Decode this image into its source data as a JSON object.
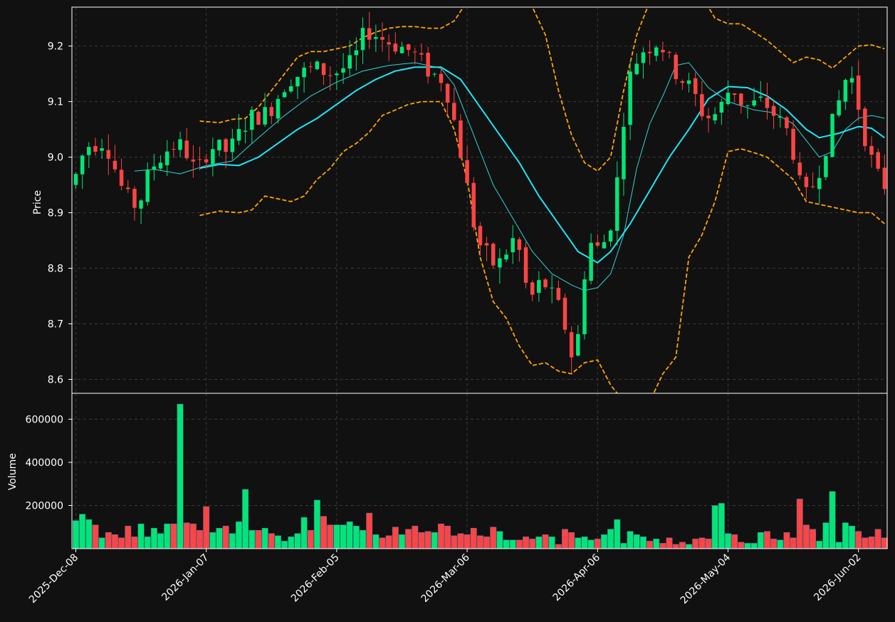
{
  "colors": {
    "background": "#111111",
    "up": "#00e676",
    "down": "#ff4444",
    "ma_fast": "#31d4d4",
    "ma_slow": "#1ee6f5",
    "bollinger": "#ffa500",
    "frame": "#ffffff",
    "grid": "#3a3a3a"
  },
  "chart_data": {
    "type": "candlestick",
    "panels": {
      "price": {
        "ylabel": "Price",
        "ylim": [
          8.575,
          9.27
        ],
        "yticks": [
          8.6,
          8.7,
          8.8,
          8.9,
          9.0,
          9.1,
          9.2
        ],
        "ytick_labels": [
          "8.6",
          "8.7",
          "8.8",
          "8.9",
          "9.0",
          "9.1",
          "9.2"
        ]
      },
      "volume": {
        "ylabel": "Volume",
        "ylim": [
          0,
          720000
        ],
        "yticks": [
          200000,
          400000,
          600000
        ],
        "ytick_labels": [
          "200000",
          "400000",
          "600000"
        ]
      }
    },
    "xlim": [
      -0.6,
      124.4
    ],
    "xticks": [
      0,
      20,
      40,
      60,
      80,
      100,
      120
    ],
    "xtick_labels": [
      "2025-Dec-08",
      "2026-Jan-07",
      "2026-Feb-05",
      "2026-Mar-06",
      "2026-Apr-06",
      "2026-May-04",
      "2026-Jun-02"
    ],
    "grid": true,
    "legend": "none",
    "ohlc_path": [
      [
        0,
        8.95
      ],
      [
        2,
        9.02
      ],
      [
        5,
        9.03
      ],
      [
        8,
        8.93
      ],
      [
        10,
        8.91
      ],
      [
        12,
        8.98
      ],
      [
        15,
        9.02
      ],
      [
        17,
        9.02
      ],
      [
        19,
        8.97
      ],
      [
        21,
        9.02
      ],
      [
        24,
        9.01
      ],
      [
        27,
        9.07
      ],
      [
        30,
        9.08
      ],
      [
        33,
        9.14
      ],
      [
        37,
        9.16
      ],
      [
        40,
        9.15
      ],
      [
        43,
        9.17
      ],
      [
        45,
        9.23
      ],
      [
        48,
        9.21
      ],
      [
        52,
        9.19
      ],
      [
        55,
        9.15
      ],
      [
        57,
        9.14
      ],
      [
        59,
        9.04
      ],
      [
        62,
        8.85
      ],
      [
        65,
        8.8
      ],
      [
        68,
        8.86
      ],
      [
        70,
        8.74
      ],
      [
        72,
        8.78
      ],
      [
        75,
        8.72
      ],
      [
        77,
        8.62
      ],
      [
        79,
        8.85
      ],
      [
        81,
        8.83
      ],
      [
        83,
        8.9
      ],
      [
        85,
        9.13
      ],
      [
        87,
        9.19
      ],
      [
        90,
        9.21
      ],
      [
        92,
        9.16
      ],
      [
        95,
        9.12
      ],
      [
        97,
        9.07
      ],
      [
        99,
        9.08
      ],
      [
        101,
        9.13
      ],
      [
        103,
        9.09
      ],
      [
        106,
        9.1
      ],
      [
        108,
        9.07
      ],
      [
        110,
        9.04
      ],
      [
        112,
        8.92
      ],
      [
        114,
        8.96
      ],
      [
        116,
        9.04
      ],
      [
        118,
        9.12
      ],
      [
        119,
        9.16
      ],
      [
        120,
        9.12
      ],
      [
        122,
        9.01
      ],
      [
        124,
        8.95
      ]
    ],
    "candle_noise": 0.018,
    "series": [
      {
        "name": "",
        "type": "line",
        "style": "thin",
        "color_key": "ma_fast",
        "start": 9,
        "points": [
          [
            9,
            8.975
          ],
          [
            12,
            8.978
          ],
          [
            16,
            8.97
          ],
          [
            20,
            8.985
          ],
          [
            24,
            8.993
          ],
          [
            28,
            9.035
          ],
          [
            32,
            9.075
          ],
          [
            36,
            9.11
          ],
          [
            40,
            9.135
          ],
          [
            44,
            9.155
          ],
          [
            48,
            9.165
          ],
          [
            52,
            9.17
          ],
          [
            56,
            9.16
          ],
          [
            58,
            9.13
          ],
          [
            61,
            9.04
          ],
          [
            64,
            8.95
          ],
          [
            67,
            8.89
          ],
          [
            70,
            8.83
          ],
          [
            73,
            8.79
          ],
          [
            76,
            8.77
          ],
          [
            78,
            8.76
          ],
          [
            80,
            8.765
          ],
          [
            82,
            8.79
          ],
          [
            84,
            8.86
          ],
          [
            86,
            8.98
          ],
          [
            88,
            9.06
          ],
          [
            90,
            9.11
          ],
          [
            92,
            9.165
          ],
          [
            94,
            9.17
          ],
          [
            97,
            9.125
          ],
          [
            100,
            9.1
          ],
          [
            104,
            9.085
          ],
          [
            107,
            9.08
          ],
          [
            110,
            9.06
          ],
          [
            112,
            9.03
          ],
          [
            114,
            9.0
          ],
          [
            116,
            9.01
          ],
          [
            118,
            9.05
          ],
          [
            120,
            9.07
          ],
          [
            122,
            9.075
          ],
          [
            124,
            9.07
          ]
        ]
      },
      {
        "name": "",
        "type": "line",
        "style": "thick",
        "color_key": "ma_slow",
        "start": 19,
        "points": [
          [
            19,
            8.98
          ],
          [
            22,
            8.987
          ],
          [
            25,
            8.985
          ],
          [
            28,
            9.0
          ],
          [
            31,
            9.025
          ],
          [
            34,
            9.05
          ],
          [
            37,
            9.07
          ],
          [
            40,
            9.095
          ],
          [
            43,
            9.12
          ],
          [
            46,
            9.14
          ],
          [
            49,
            9.155
          ],
          [
            52,
            9.162
          ],
          [
            56,
            9.162
          ],
          [
            59,
            9.14
          ],
          [
            62,
            9.09
          ],
          [
            65,
            9.04
          ],
          [
            68,
            8.99
          ],
          [
            71,
            8.93
          ],
          [
            74,
            8.88
          ],
          [
            77,
            8.83
          ],
          [
            80,
            8.81
          ],
          [
            82,
            8.83
          ],
          [
            85,
            8.88
          ],
          [
            88,
            8.94
          ],
          [
            91,
            9.0
          ],
          [
            94,
            9.05
          ],
          [
            97,
            9.105
          ],
          [
            100,
            9.127
          ],
          [
            103,
            9.125
          ],
          [
            106,
            9.11
          ],
          [
            109,
            9.085
          ],
          [
            112,
            9.05
          ],
          [
            114,
            9.035
          ],
          [
            117,
            9.043
          ],
          [
            120,
            9.055
          ],
          [
            122,
            9.052
          ],
          [
            124,
            9.035
          ]
        ]
      },
      {
        "name": "",
        "type": "line",
        "style": "dashed",
        "color_key": "bollinger",
        "start": 19,
        "points": [
          [
            19,
            9.065
          ],
          [
            22,
            9.062
          ],
          [
            24,
            9.068
          ],
          [
            26,
            9.07
          ],
          [
            28,
            9.09
          ],
          [
            30,
            9.12
          ],
          [
            32,
            9.15
          ],
          [
            34,
            9.18
          ],
          [
            36,
            9.19
          ],
          [
            38,
            9.19
          ],
          [
            40,
            9.195
          ],
          [
            42,
            9.2
          ],
          [
            44,
            9.215
          ],
          [
            46,
            9.225
          ],
          [
            48,
            9.232
          ],
          [
            50,
            9.235
          ],
          [
            52,
            9.235
          ],
          [
            54,
            9.232
          ],
          [
            56,
            9.232
          ],
          [
            58,
            9.245
          ],
          [
            60,
            9.28
          ],
          [
            62,
            9.32
          ],
          [
            64,
            9.35
          ],
          [
            66,
            9.33
          ],
          [
            68,
            9.3
          ],
          [
            70,
            9.27
          ],
          [
            72,
            9.22
          ],
          [
            74,
            9.12
          ],
          [
            76,
            9.04
          ],
          [
            78,
            8.99
          ],
          [
            80,
            8.975
          ],
          [
            82,
            9.0
          ],
          [
            84,
            9.12
          ],
          [
            86,
            9.22
          ],
          [
            88,
            9.28
          ],
          [
            90,
            9.32
          ],
          [
            92,
            9.33
          ],
          [
            94,
            9.32
          ],
          [
            96,
            9.29
          ],
          [
            98,
            9.25
          ],
          [
            100,
            9.24
          ],
          [
            102,
            9.24
          ],
          [
            104,
            9.225
          ],
          [
            106,
            9.21
          ],
          [
            108,
            9.19
          ],
          [
            110,
            9.17
          ],
          [
            112,
            9.18
          ],
          [
            114,
            9.175
          ],
          [
            116,
            9.16
          ],
          [
            118,
            9.18
          ],
          [
            120,
            9.2
          ],
          [
            122,
            9.202
          ],
          [
            124,
            9.195
          ]
        ]
      },
      {
        "name": "",
        "type": "line",
        "style": "dashed",
        "color_key": "bollinger",
        "start": 19,
        "points": [
          [
            19,
            8.895
          ],
          [
            22,
            8.903
          ],
          [
            25,
            8.9
          ],
          [
            27,
            8.905
          ],
          [
            29,
            8.93
          ],
          [
            31,
            8.925
          ],
          [
            33,
            8.92
          ],
          [
            35,
            8.93
          ],
          [
            37,
            8.96
          ],
          [
            39,
            8.98
          ],
          [
            41,
            9.01
          ],
          [
            43,
            9.025
          ],
          [
            45,
            9.045
          ],
          [
            47,
            9.075
          ],
          [
            49,
            9.085
          ],
          [
            51,
            9.095
          ],
          [
            53,
            9.1
          ],
          [
            56,
            9.1
          ],
          [
            58,
            9.05
          ],
          [
            60,
            8.96
          ],
          [
            62,
            8.82
          ],
          [
            64,
            8.74
          ],
          [
            66,
            8.71
          ],
          [
            68,
            8.66
          ],
          [
            70,
            8.625
          ],
          [
            72,
            8.63
          ],
          [
            74,
            8.615
          ],
          [
            76,
            8.61
          ],
          [
            78,
            8.63
          ],
          [
            80,
            8.635
          ],
          [
            82,
            8.59
          ],
          [
            84,
            8.56
          ],
          [
            86,
            8.55
          ],
          [
            88,
            8.56
          ],
          [
            90,
            8.61
          ],
          [
            92,
            8.64
          ],
          [
            94,
            8.82
          ],
          [
            96,
            8.86
          ],
          [
            98,
            8.92
          ],
          [
            100,
            9.01
          ],
          [
            102,
            9.015
          ],
          [
            104,
            9.008
          ],
          [
            106,
            9.0
          ],
          [
            108,
            8.98
          ],
          [
            110,
            8.96
          ],
          [
            112,
            8.92
          ],
          [
            114,
            8.915
          ],
          [
            116,
            8.91
          ],
          [
            118,
            8.905
          ],
          [
            120,
            8.9
          ],
          [
            122,
            8.9
          ],
          [
            124,
            8.88
          ]
        ]
      }
    ],
    "volume_values": [
      130000,
      160000,
      135000,
      110000,
      50000,
      75000,
      65000,
      50000,
      105000,
      55000,
      115000,
      55000,
      95000,
      70000,
      115000,
      115000,
      670000,
      120000,
      115000,
      85000,
      195000,
      75000,
      95000,
      105000,
      70000,
      125000,
      275000,
      85000,
      85000,
      95000,
      70000,
      60000,
      35000,
      55000,
      70000,
      145000,
      85000,
      225000,
      150000,
      110000,
      110000,
      110000,
      125000,
      105000,
      85000,
      165000,
      65000,
      50000,
      60000,
      100000,
      65000,
      90000,
      105000,
      75000,
      80000,
      75000,
      115000,
      105000,
      60000,
      70000,
      65000,
      95000,
      60000,
      55000,
      100000,
      80000,
      40000,
      40000,
      40000,
      55000,
      45000,
      55000,
      65000,
      55000,
      20000,
      90000,
      75000,
      50000,
      55000,
      40000,
      45000,
      65000,
      90000,
      135000,
      25000,
      80000,
      65000,
      55000,
      35000,
      45000,
      25000,
      50000,
      20000,
      30000,
      20000,
      45000,
      50000,
      45000,
      200000,
      210000,
      70000,
      65000,
      30000,
      25000,
      25000,
      75000,
      80000,
      45000,
      40000,
      75000,
      50000,
      230000,
      110000,
      90000,
      35000,
      120000,
      265000,
      30000,
      120000,
      105000,
      80000,
      50000,
      55000,
      90000,
      50000
    ]
  }
}
